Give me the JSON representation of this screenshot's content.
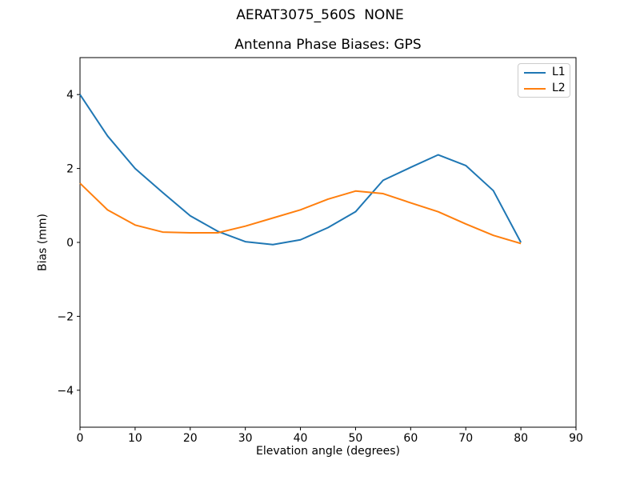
{
  "chart_data": {
    "type": "line",
    "title": "AERAT3075_560S  NONE",
    "subtitle": "Antenna Phase Biases: GPS",
    "xlabel": "Elevation angle (degrees)",
    "ylabel": "Bias (mm)",
    "xlim": [
      0,
      90
    ],
    "ylim": [
      -5,
      5
    ],
    "x_ticks": [
      0,
      10,
      20,
      30,
      40,
      50,
      60,
      70,
      80,
      90
    ],
    "y_ticks": [
      -4,
      -2,
      0,
      2,
      4
    ],
    "grid": false,
    "legend_position": "upper right",
    "axis_color": "#000000",
    "x": [
      0,
      5,
      10,
      15,
      20,
      25,
      30,
      35,
      40,
      45,
      50,
      55,
      60,
      65,
      70,
      75,
      80
    ],
    "series": [
      {
        "name": "L1",
        "color": "#1f77b4",
        "values": [
          4.0,
          2.88,
          2.0,
          1.35,
          0.72,
          0.3,
          0.02,
          -0.06,
          0.07,
          0.4,
          0.83,
          1.68,
          2.03,
          2.37,
          2.08,
          1.4,
          0.0
        ]
      },
      {
        "name": "L2",
        "color": "#ff7f0e",
        "values": [
          1.6,
          0.88,
          0.47,
          0.28,
          0.26,
          0.26,
          0.44,
          0.66,
          0.88,
          1.17,
          1.39,
          1.32,
          1.07,
          0.83,
          0.5,
          0.19,
          -0.03
        ]
      }
    ]
  }
}
